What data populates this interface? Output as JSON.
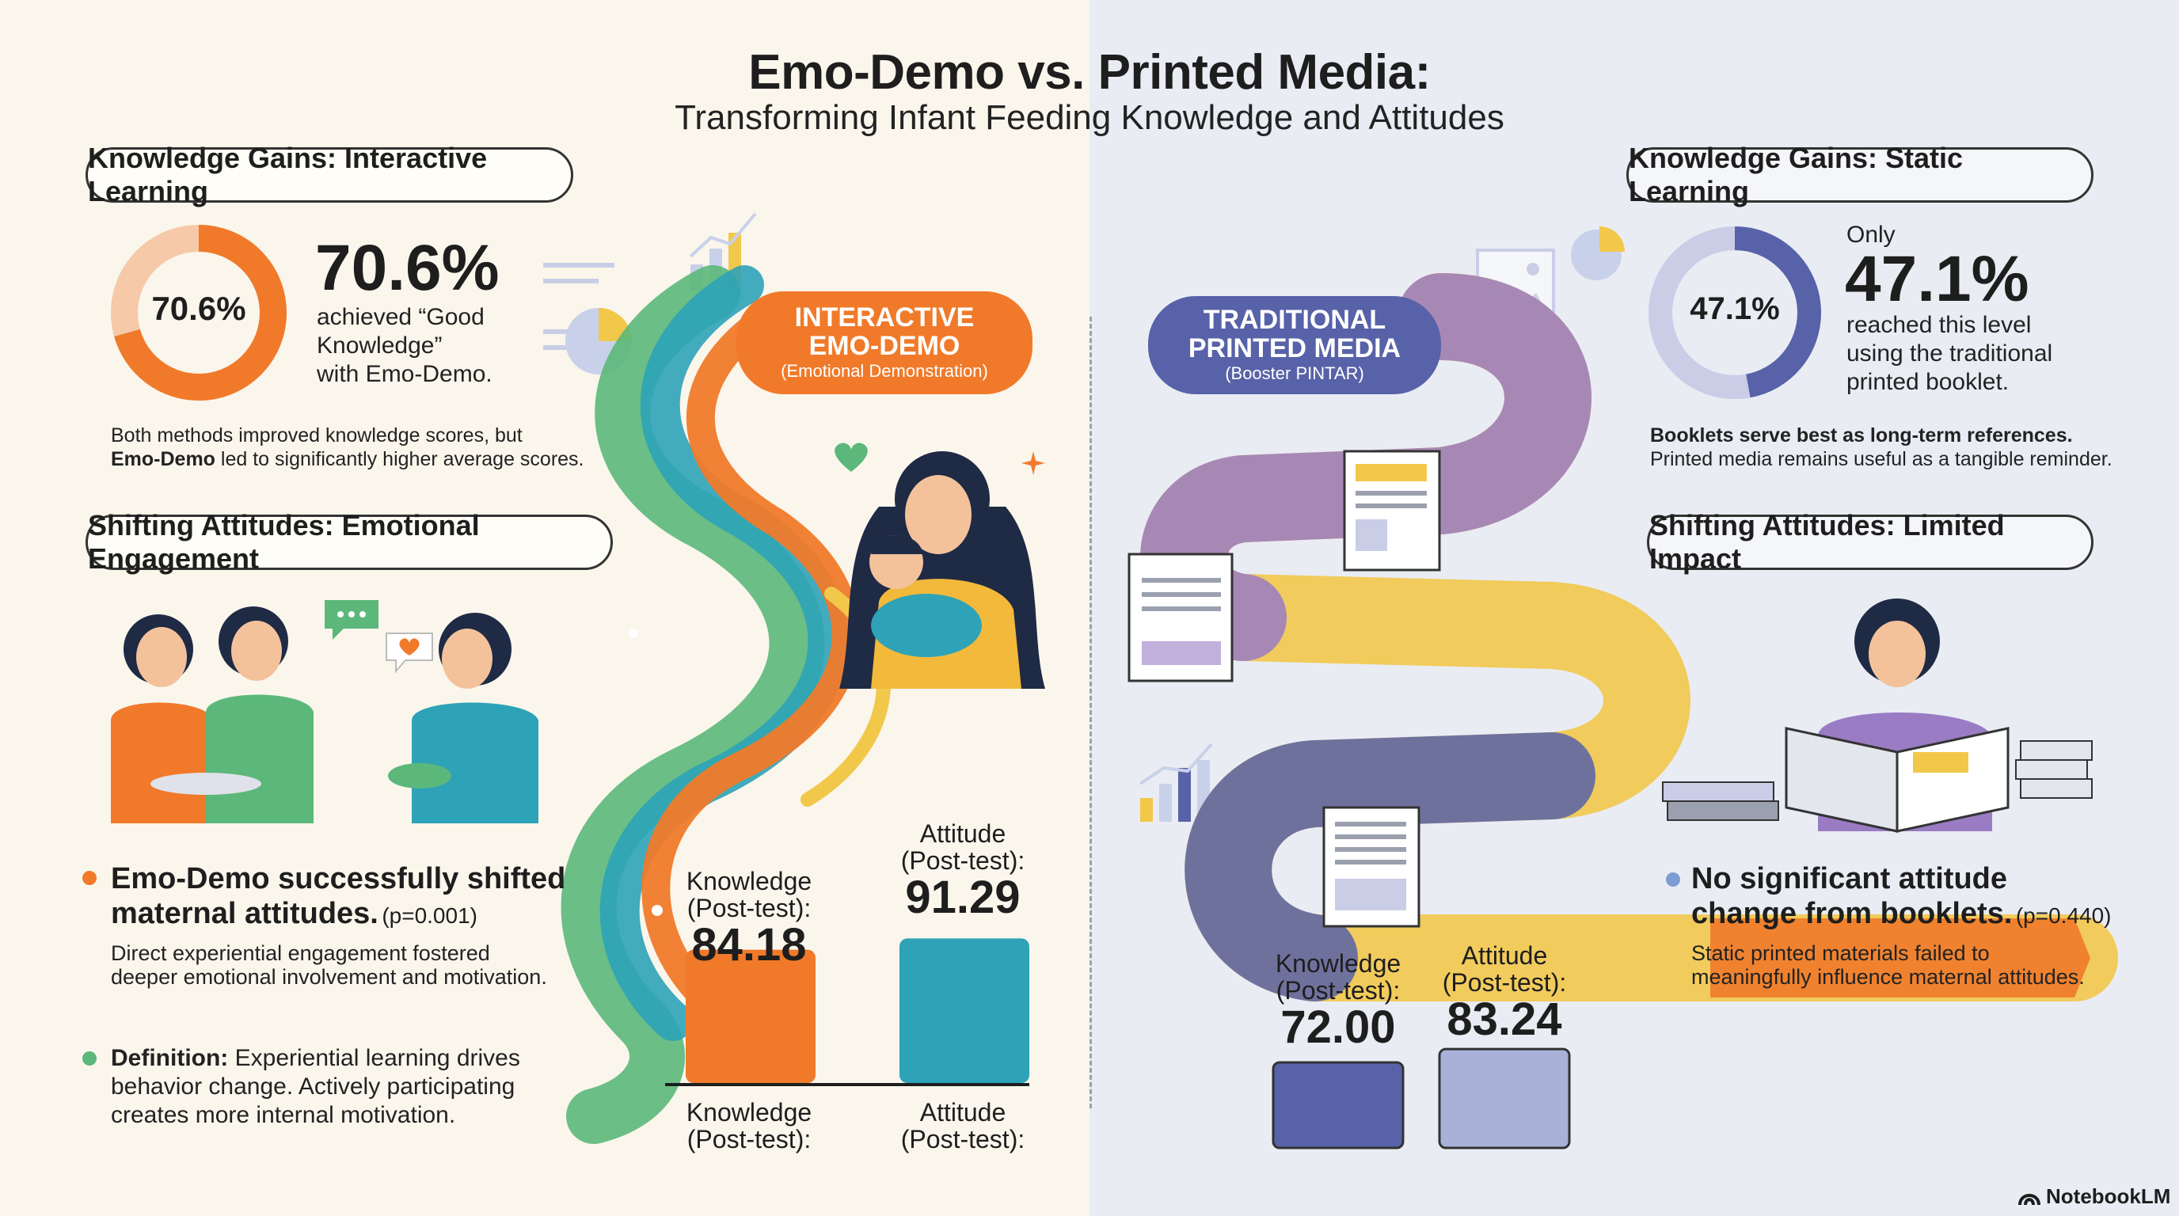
{
  "header": {
    "title": "Emo-Demo vs. Printed Media:",
    "subtitle": "Transforming Infant Feeding Knowledge and Attitudes"
  },
  "left": {
    "knowledge_heading": "Knowledge Gains: Interactive Learning",
    "donut_label": "70.6%",
    "donut_fraction": 0.706,
    "big_stat": "70.6%",
    "stat_desc_1": "achieved “Good",
    "stat_desc_2": "Knowledge”",
    "stat_desc_3": "with Emo-Demo.",
    "note_line_1": "Both methods improved knowledge scores, but",
    "note_bold": "Emo-Demo",
    "note_line_2": " led to significantly higher average scores.",
    "attitude_heading": "Shifting Attitudes: Emotional Engagement",
    "bullet_title_1": "Emo-Demo successfully shifted",
    "bullet_title_2": "maternal attitudes.",
    "bullet_p": "(p=0.001)",
    "bullet_desc_1": "Direct experiential engagement fostered",
    "bullet_desc_2": "deeper emotional involvement and motivation.",
    "def_bold": "Definition:",
    "def_line_1": " Experiential learning drives",
    "def_line_2": "behavior change. Actively participating",
    "def_line_3": "creates more internal motivation.",
    "tag_line_1": "INTERACTIVE",
    "tag_line_2": "EMO-DEMO",
    "tag_line_3": "(Emotional Demonstration)",
    "bars": [
      {
        "label_1": "Knowledge",
        "label_2": "(Post-test):",
        "value": "84.18",
        "cap_1": "Knowledge",
        "cap_2": "(Post-test):"
      },
      {
        "label_1": "Attitude",
        "label_2": "(Post-test):",
        "value": "91.29",
        "cap_1": "Attitude",
        "cap_2": "(Post-test):"
      }
    ]
  },
  "right": {
    "knowledge_heading": "Knowledge Gains: Static Learning",
    "donut_label": "47.1%",
    "donut_fraction": 0.471,
    "only": "Only",
    "big_stat": "47.1%",
    "stat_desc_1": "reached this level",
    "stat_desc_2": "using the traditional",
    "stat_desc_3": "printed booklet.",
    "note_bold": "Booklets serve best as long-term references.",
    "note_line": "Printed media remains useful as a tangible reminder.",
    "attitude_heading": "Shifting Attitudes: Limited Impact",
    "bullet_title_1": "No significant attitude",
    "bullet_title_2": "change from booklets.",
    "bullet_p": "(p=0.440)",
    "bullet_desc_1": "Static printed materials failed to",
    "bullet_desc_2": "meaningfully influence maternal attitudes.",
    "tag_line_1": "TRADITIONAL",
    "tag_line_2": "PRINTED MEDIA",
    "tag_line_3": "(Booster PINTAR)",
    "bars": [
      {
        "label_1": "Knowledge",
        "label_2": "(Post-test):",
        "value": "72.00"
      },
      {
        "label_1": "Attitude",
        "label_2": "(Post-test):",
        "value": "83.24"
      }
    ]
  },
  "footer": {
    "brand": "NotebookLM"
  },
  "colors": {
    "orange": "#f07a2a",
    "orange_light": "#f6c9a8",
    "green": "#5bb87a",
    "teal": "#2ea3b8",
    "navy": "#5862a8",
    "navy_light": "#c9cde6",
    "purple": "#9a7cc4",
    "yellow": "#f2c84b",
    "blue": "#7f9bd3"
  },
  "icons": [
    "bar-chart-icon",
    "pie-chart-icon",
    "document-icon",
    "image-icon",
    "heart-icon",
    "chat-bubble-icon",
    "sparkle-icon",
    "book-icon"
  ]
}
